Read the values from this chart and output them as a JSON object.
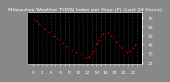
{
  "hours": [
    0,
    1,
    2,
    3,
    4,
    5,
    6,
    7,
    8,
    9,
    10,
    11,
    12,
    13,
    14,
    15,
    16,
    17,
    18,
    19,
    20,
    21,
    22,
    23
  ],
  "values": [
    70,
    65,
    60,
    55,
    52,
    48,
    44,
    40,
    36,
    32,
    30,
    27,
    24,
    28,
    38,
    48,
    55,
    52,
    46,
    40,
    34,
    30,
    34,
    42
  ],
  "line_color": "#ff0000",
  "marker_color": "#000000",
  "title": "Milwaukee Weather THSW Index per Hour (F) (Last 24 Hours)",
  "ylim": [
    18,
    76
  ],
  "yticks": [
    20,
    30,
    40,
    50,
    60,
    70
  ],
  "background_color": "#000000",
  "outer_bg": "#888888",
  "grid_color": "#555555",
  "title_fontsize": 4.5,
  "tick_fontsize": 3.5,
  "title_color": "#ffffff"
}
